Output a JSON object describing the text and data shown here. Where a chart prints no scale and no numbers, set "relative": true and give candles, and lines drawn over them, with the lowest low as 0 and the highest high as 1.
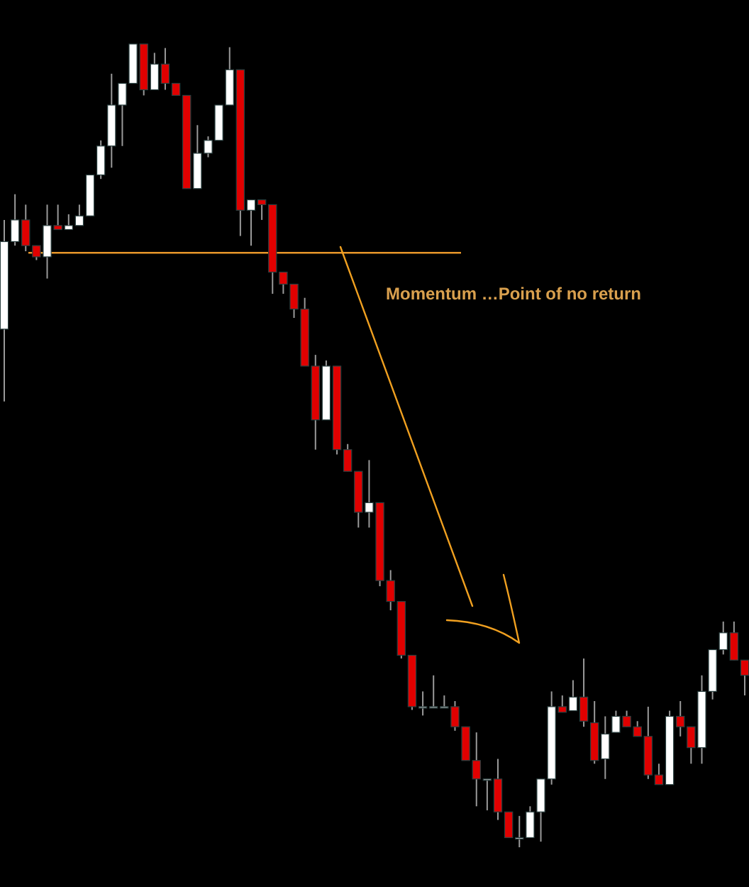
{
  "chart_data": {
    "type": "candlestick",
    "relative": true,
    "categories": [
      null,
      null,
      null,
      null,
      null,
      null,
      null,
      null,
      null,
      null,
      null,
      null,
      null,
      null,
      null,
      null,
      null,
      null,
      null,
      null,
      null,
      null,
      null,
      null,
      null,
      null,
      null,
      null,
      null,
      null,
      null,
      null,
      null,
      null,
      null,
      null,
      null,
      null,
      null,
      null,
      null,
      null,
      null,
      null,
      null,
      null,
      null,
      null,
      null,
      null,
      null,
      null,
      null,
      null,
      null,
      null,
      null,
      null,
      null,
      null,
      null,
      null,
      null,
      null,
      null,
      null,
      null,
      null,
      null,
      null
    ],
    "ohlc": [
      [
        0.645,
        0.781,
        0.555,
        0.754
      ],
      [
        0.754,
        0.813,
        0.749,
        0.781
      ],
      [
        0.781,
        0.8,
        0.742,
        0.749
      ],
      [
        0.749,
        0.749,
        0.731,
        0.735
      ],
      [
        0.735,
        0.8,
        0.708,
        0.774
      ],
      [
        0.774,
        0.8,
        0.769,
        0.769
      ],
      [
        0.769,
        0.788,
        0.769,
        0.774
      ],
      [
        0.774,
        0.8,
        0.774,
        0.786
      ],
      [
        0.786,
        0.837,
        0.786,
        0.837
      ],
      [
        0.837,
        0.88,
        0.832,
        0.873
      ],
      [
        0.873,
        0.963,
        0.846,
        0.924
      ],
      [
        0.924,
        0.951,
        0.873,
        0.951
      ],
      [
        0.951,
        1.0,
        0.951,
        1.0
      ],
      [
        1.0,
        1.0,
        0.936,
        0.943
      ],
      [
        0.943,
        0.989,
        0.943,
        0.975
      ],
      [
        0.975,
        0.995,
        0.943,
        0.951
      ],
      [
        0.951,
        0.951,
        0.936,
        0.936
      ],
      [
        0.936,
        0.936,
        0.82,
        0.82
      ],
      [
        0.82,
        0.899,
        0.82,
        0.864
      ],
      [
        0.864,
        0.885,
        0.859,
        0.88
      ],
      [
        0.88,
        0.924,
        0.88,
        0.924
      ],
      [
        0.924,
        0.996,
        0.924,
        0.968
      ],
      [
        0.968,
        0.968,
        0.761,
        0.793
      ],
      [
        0.793,
        0.806,
        0.749,
        0.806
      ],
      [
        0.806,
        0.806,
        0.781,
        0.8
      ],
      [
        0.8,
        0.8,
        0.689,
        0.716
      ],
      [
        0.716,
        0.716,
        0.689,
        0.701
      ],
      [
        0.701,
        0.701,
        0.659,
        0.67
      ],
      [
        0.67,
        0.684,
        0.599,
        0.599
      ],
      [
        0.599,
        0.613,
        0.495,
        0.532
      ],
      [
        0.532,
        0.606,
        0.532,
        0.599
      ],
      [
        0.599,
        0.599,
        0.489,
        0.495
      ],
      [
        0.495,
        0.502,
        0.468,
        0.468
      ],
      [
        0.468,
        0.468,
        0.398,
        0.417
      ],
      [
        0.417,
        0.482,
        0.398,
        0.429
      ],
      [
        0.429,
        0.429,
        0.325,
        0.332
      ],
      [
        0.332,
        0.345,
        0.295,
        0.306
      ],
      [
        0.306,
        0.306,
        0.235,
        0.239
      ],
      [
        0.239,
        0.239,
        0.171,
        0.175
      ],
      [
        0.175,
        0.194,
        0.164,
        0.175
      ],
      [
        0.175,
        0.214,
        0.175,
        0.175
      ],
      [
        0.175,
        0.189,
        0.175,
        0.175
      ],
      [
        0.175,
        0.182,
        0.145,
        0.15
      ],
      [
        0.15,
        0.15,
        0.108,
        0.108
      ],
      [
        0.108,
        0.143,
        0.051,
        0.085
      ],
      [
        0.085,
        0.085,
        0.046,
        0.085
      ],
      [
        0.085,
        0.11,
        0.034,
        0.044
      ],
      [
        0.044,
        0.044,
        0.012,
        0.012
      ],
      [
        0.012,
        0.039,
        0,
        0.012
      ],
      [
        0.012,
        0.051,
        0.012,
        0.044
      ],
      [
        0.044,
        0.085,
        0.007,
        0.085
      ],
      [
        0.085,
        0.194,
        0.078,
        0.175
      ],
      [
        0.175,
        0.189,
        0.168,
        0.168
      ],
      [
        0.17,
        0.208,
        0.17,
        0.187
      ],
      [
        0.187,
        0.235,
        0.15,
        0.157
      ],
      [
        0.155,
        0.182,
        0.104,
        0.108
      ],
      [
        0.11,
        0.163,
        0.085,
        0.141
      ],
      [
        0.143,
        0.17,
        0.143,
        0.163
      ],
      [
        0.163,
        0.17,
        0.15,
        0.15
      ],
      [
        0.15,
        0.157,
        0.138,
        0.138
      ],
      [
        0.138,
        0.175,
        0.085,
        0.09
      ],
      [
        0.09,
        0.104,
        0.078,
        0.078
      ],
      [
        0.078,
        0.17,
        0.078,
        0.163
      ],
      [
        0.163,
        0.182,
        0.138,
        0.15
      ],
      [
        0.15,
        0.15,
        0.104,
        0.124
      ],
      [
        0.124,
        0.214,
        0.104,
        0.194
      ],
      [
        0.194,
        0.246,
        0.184,
        0.246
      ],
      [
        0.246,
        0.281,
        0.24,
        0.267
      ],
      [
        0.267,
        0.281,
        0.233,
        0.233
      ],
      [
        0.233,
        0.233,
        0.189,
        0.214
      ]
    ],
    "colors": [
      "#ffffff",
      "#ffffff",
      "#e00000",
      "#e00000",
      "#ffffff",
      "#e00000",
      "#ffffff",
      "#ffffff",
      "#ffffff",
      "#ffffff",
      "#ffffff",
      "#ffffff",
      "#ffffff",
      "#e00000",
      "#ffffff",
      "#e00000",
      "#e00000",
      "#e00000",
      "#ffffff",
      "#ffffff",
      "#ffffff",
      "#ffffff",
      "#e00000",
      "#ffffff",
      "#e00000",
      "#e00000",
      "#e00000",
      "#e00000",
      "#e00000",
      "#e00000",
      "#ffffff",
      "#e00000",
      "#e00000",
      "#e00000",
      "#ffffff",
      "#e00000",
      "#e00000",
      "#e00000",
      "#e00000",
      "#cccccc",
      "#cccccc",
      "#cccccc",
      "#e00000",
      "#e00000",
      "#e00000",
      "#cccccc",
      "#e00000",
      "#e00000",
      "#cccccc",
      "#ffffff",
      "#ffffff",
      "#ffffff",
      "#e00000",
      "#ffffff",
      "#e00000",
      "#e00000",
      "#ffffff",
      "#ffffff",
      "#e00000",
      "#e00000",
      "#e00000",
      "#e00000",
      "#ffffff",
      "#e00000",
      "#e00000",
      "#ffffff",
      "#ffffff",
      "#ffffff",
      "#e00000",
      "#e00000"
    ],
    "ref_lines": [
      {
        "axis": "y",
        "value": 0.74,
        "color": "#e8962a"
      }
    ],
    "annotations": [
      "Momentum …Point of no return"
    ]
  }
}
